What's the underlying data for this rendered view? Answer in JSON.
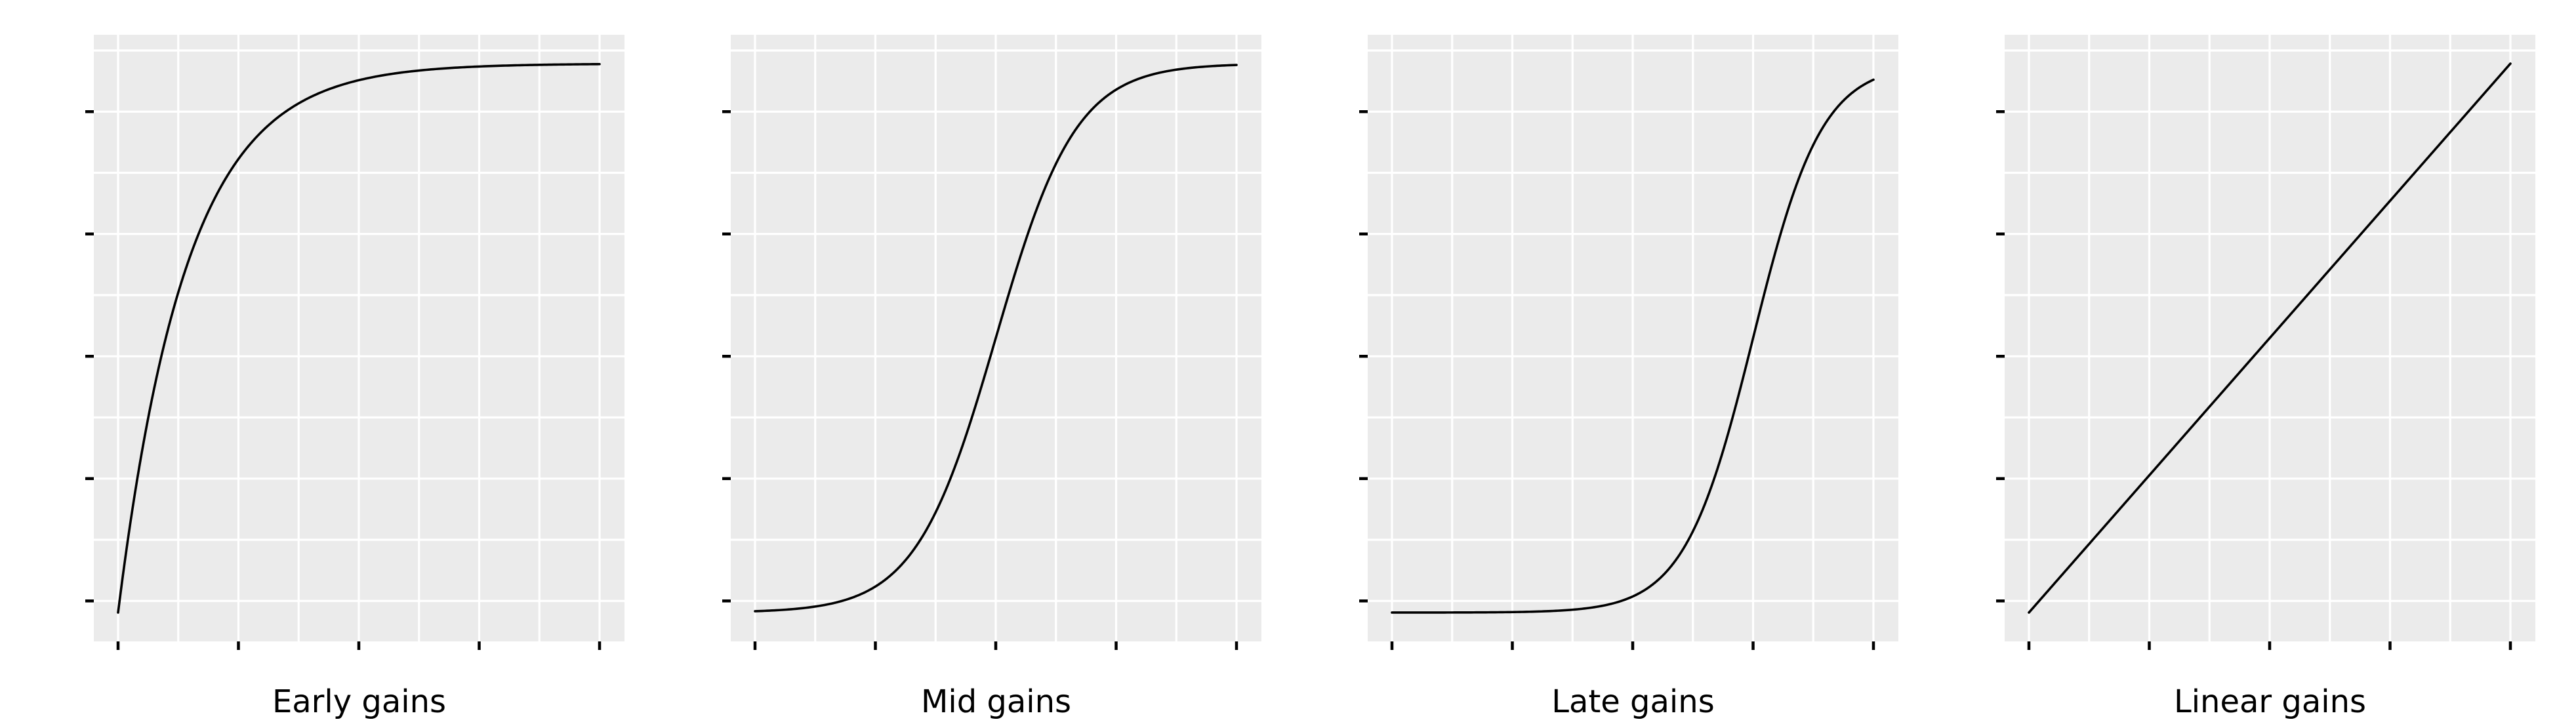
{
  "figure": {
    "background": "#ffffff",
    "panel_bg": "#ebebeb",
    "grid_color": "#ffffff",
    "curve_color": "#000000",
    "tick_color": "#000000",
    "label_color": "#000000"
  },
  "axes": {
    "x_range": [
      0,
      1
    ],
    "y_range": [
      0,
      1
    ],
    "x_tick_count": 5,
    "y_tick_count": 5,
    "tick_labels_shown": false,
    "grid": "white major and minor gridlines on gray panel",
    "legend": false
  },
  "chart_data": [
    {
      "type": "line",
      "label": "Early gains",
      "curve_family": "saturating-exponential",
      "params": {
        "k": 7
      },
      "x": [
        0,
        0.05,
        0.1,
        0.15,
        0.2,
        0.25,
        0.3,
        0.35,
        0.4,
        0.45,
        0.5,
        0.55,
        0.6,
        0.65,
        0.7,
        0.75,
        0.8,
        0.85,
        0.9,
        0.95,
        1
      ],
      "y": [
        0,
        0.295,
        0.503,
        0.65,
        0.753,
        0.826,
        0.878,
        0.914,
        0.939,
        0.957,
        0.97,
        0.979,
        0.985,
        0.989,
        0.993,
        0.995,
        0.996,
        0.997,
        0.998,
        0.999,
        0.999
      ]
    },
    {
      "type": "line",
      "label": "Mid gains",
      "curve_family": "logistic",
      "params": {
        "k": 12,
        "x0": 0.5
      },
      "x": [
        0,
        0.05,
        0.1,
        0.15,
        0.2,
        0.25,
        0.3,
        0.35,
        0.4,
        0.45,
        0.5,
        0.55,
        0.6,
        0.65,
        0.7,
        0.75,
        0.8,
        0.85,
        0.9,
        0.95,
        1
      ],
      "y": [
        0.002,
        0.004,
        0.008,
        0.015,
        0.027,
        0.047,
        0.083,
        0.142,
        0.231,
        0.354,
        0.5,
        0.646,
        0.769,
        0.858,
        0.917,
        0.953,
        0.973,
        0.985,
        0.992,
        0.996,
        0.998
      ]
    },
    {
      "type": "line",
      "label": "Late gains",
      "curve_family": "logistic",
      "params": {
        "k": 14,
        "x0": 0.75
      },
      "x": [
        0,
        0.05,
        0.1,
        0.15,
        0.2,
        0.25,
        0.3,
        0.35,
        0.4,
        0.45,
        0.5,
        0.55,
        0.6,
        0.65,
        0.7,
        0.75,
        0.8,
        0.85,
        0.9,
        0.95,
        1
      ],
      "y": [
        0,
        0,
        0,
        0,
        0,
        0.001,
        0.002,
        0.004,
        0.007,
        0.015,
        0.029,
        0.057,
        0.109,
        0.198,
        0.332,
        0.5,
        0.668,
        0.802,
        0.891,
        0.943,
        0.971
      ]
    },
    {
      "type": "line",
      "label": "Linear gains",
      "curve_family": "linear",
      "params": {},
      "x": [
        0,
        0.05,
        0.1,
        0.15,
        0.2,
        0.25,
        0.3,
        0.35,
        0.4,
        0.45,
        0.5,
        0.55,
        0.6,
        0.65,
        0.7,
        0.75,
        0.8,
        0.85,
        0.9,
        0.95,
        1
      ],
      "y": [
        0,
        0.05,
        0.1,
        0.15,
        0.2,
        0.25,
        0.3,
        0.35,
        0.4,
        0.45,
        0.5,
        0.55,
        0.6,
        0.65,
        0.7,
        0.75,
        0.8,
        0.85,
        0.9,
        0.95,
        1
      ]
    }
  ]
}
